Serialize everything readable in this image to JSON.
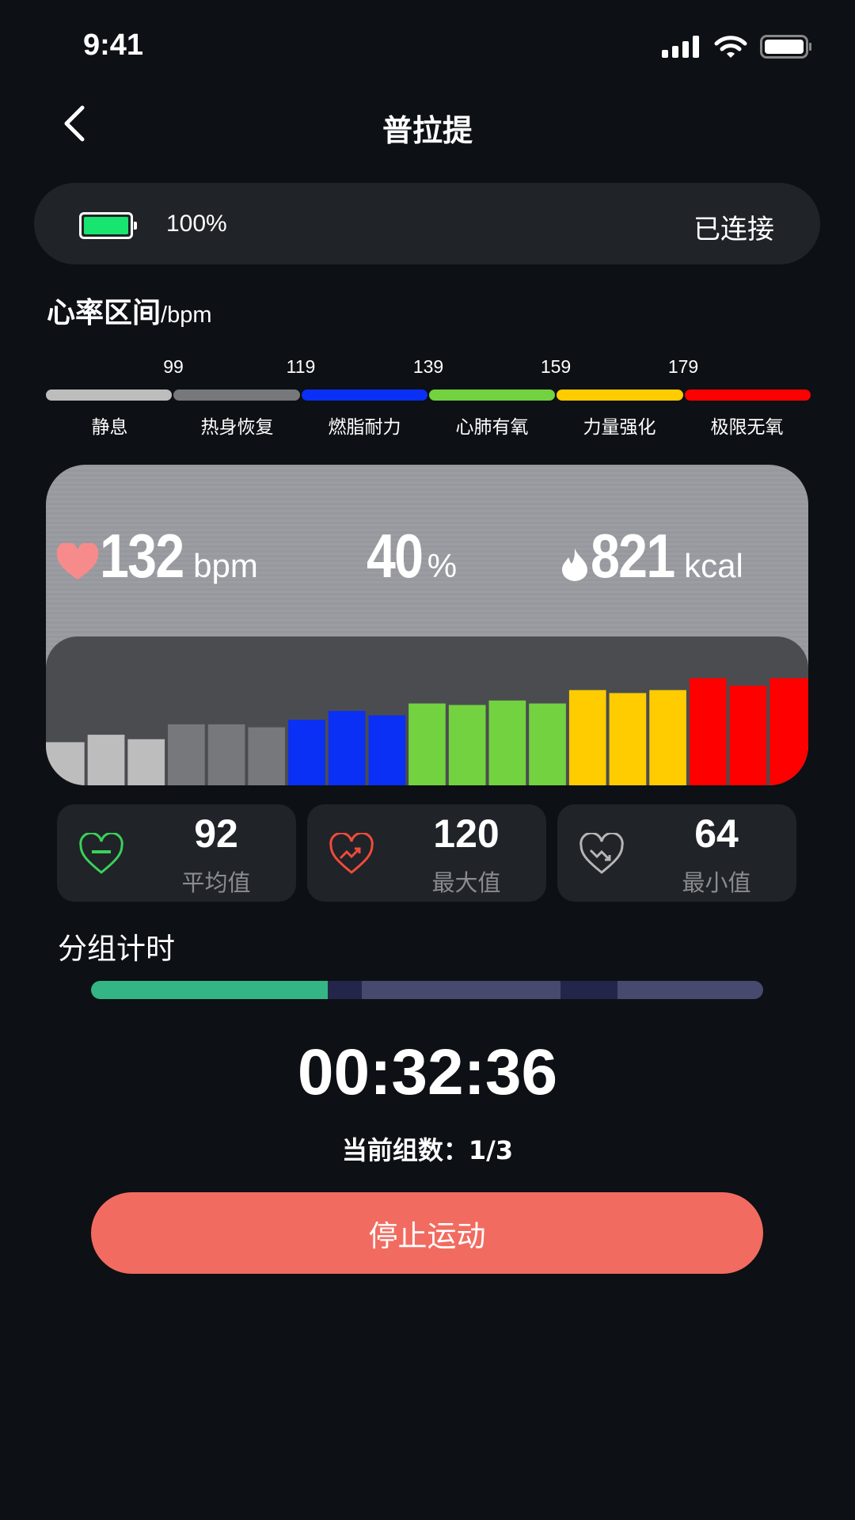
{
  "status_bar": {
    "time": "9:41"
  },
  "header": {
    "title": "普拉提"
  },
  "device": {
    "battery_percent_label": "100%",
    "battery_level": 1.0,
    "status": "已连接"
  },
  "zones": {
    "title": "心率区间",
    "unit": "/bpm",
    "thresholds": [
      "99",
      "119",
      "139",
      "159",
      "179"
    ],
    "items": [
      {
        "label": "静息",
        "color": "#bdbdbd"
      },
      {
        "label": "热身恢复",
        "color": "#77787b"
      },
      {
        "label": "燃脂耐力",
        "color": "#0a2ff5"
      },
      {
        "label": "心肺有氧",
        "color": "#72d23f"
      },
      {
        "label": "力量强化",
        "color": "#ffcc00"
      },
      {
        "label": "极限无氧",
        "color": "#ff0000"
      }
    ]
  },
  "live": {
    "heart_rate": "132",
    "heart_rate_unit": "bpm",
    "percent": "40",
    "percent_unit": "%",
    "calories": "821",
    "calories_unit": "kcal",
    "history_bars": [
      {
        "zone": 0,
        "level": 0.29
      },
      {
        "zone": 0,
        "level": 0.34
      },
      {
        "zone": 0,
        "level": 0.31
      },
      {
        "zone": 1,
        "level": 0.41
      },
      {
        "zone": 1,
        "level": 0.41
      },
      {
        "zone": 1,
        "level": 0.39
      },
      {
        "zone": 2,
        "level": 0.44
      },
      {
        "zone": 2,
        "level": 0.5
      },
      {
        "zone": 2,
        "level": 0.47
      },
      {
        "zone": 3,
        "level": 0.55
      },
      {
        "zone": 3,
        "level": 0.54
      },
      {
        "zone": 3,
        "level": 0.57
      },
      {
        "zone": 3,
        "level": 0.55
      },
      {
        "zone": 4,
        "level": 0.64
      },
      {
        "zone": 4,
        "level": 0.62
      },
      {
        "zone": 4,
        "level": 0.64
      },
      {
        "zone": 5,
        "level": 0.72
      },
      {
        "zone": 5,
        "level": 0.67
      },
      {
        "zone": 5,
        "level": 0.72
      }
    ]
  },
  "summary": [
    {
      "value": "92",
      "label": "平均值",
      "icon": "heart-average-icon",
      "color": "#3ad05a"
    },
    {
      "value": "120",
      "label": "最大值",
      "icon": "heart-max-icon",
      "color": "#ef4b3c"
    },
    {
      "value": "64",
      "label": "最小值",
      "icon": "heart-min-icon",
      "color": "#b5b5b5"
    }
  ],
  "sets": {
    "title": "分组计时",
    "segments": [
      {
        "type": "work",
        "state": "done",
        "color": "#33b585"
      },
      {
        "type": "rest",
        "state": "pending",
        "color": "#23264a"
      },
      {
        "type": "work",
        "state": "pending",
        "color": "#474a6e"
      },
      {
        "type": "rest",
        "state": "pending",
        "color": "#23264a"
      },
      {
        "type": "work",
        "state": "pending",
        "color": "#474a6e"
      }
    ],
    "timer": "00:32:36",
    "current_set": "当前组数：1/3"
  },
  "actions": {
    "stop_label": "停止运动"
  }
}
